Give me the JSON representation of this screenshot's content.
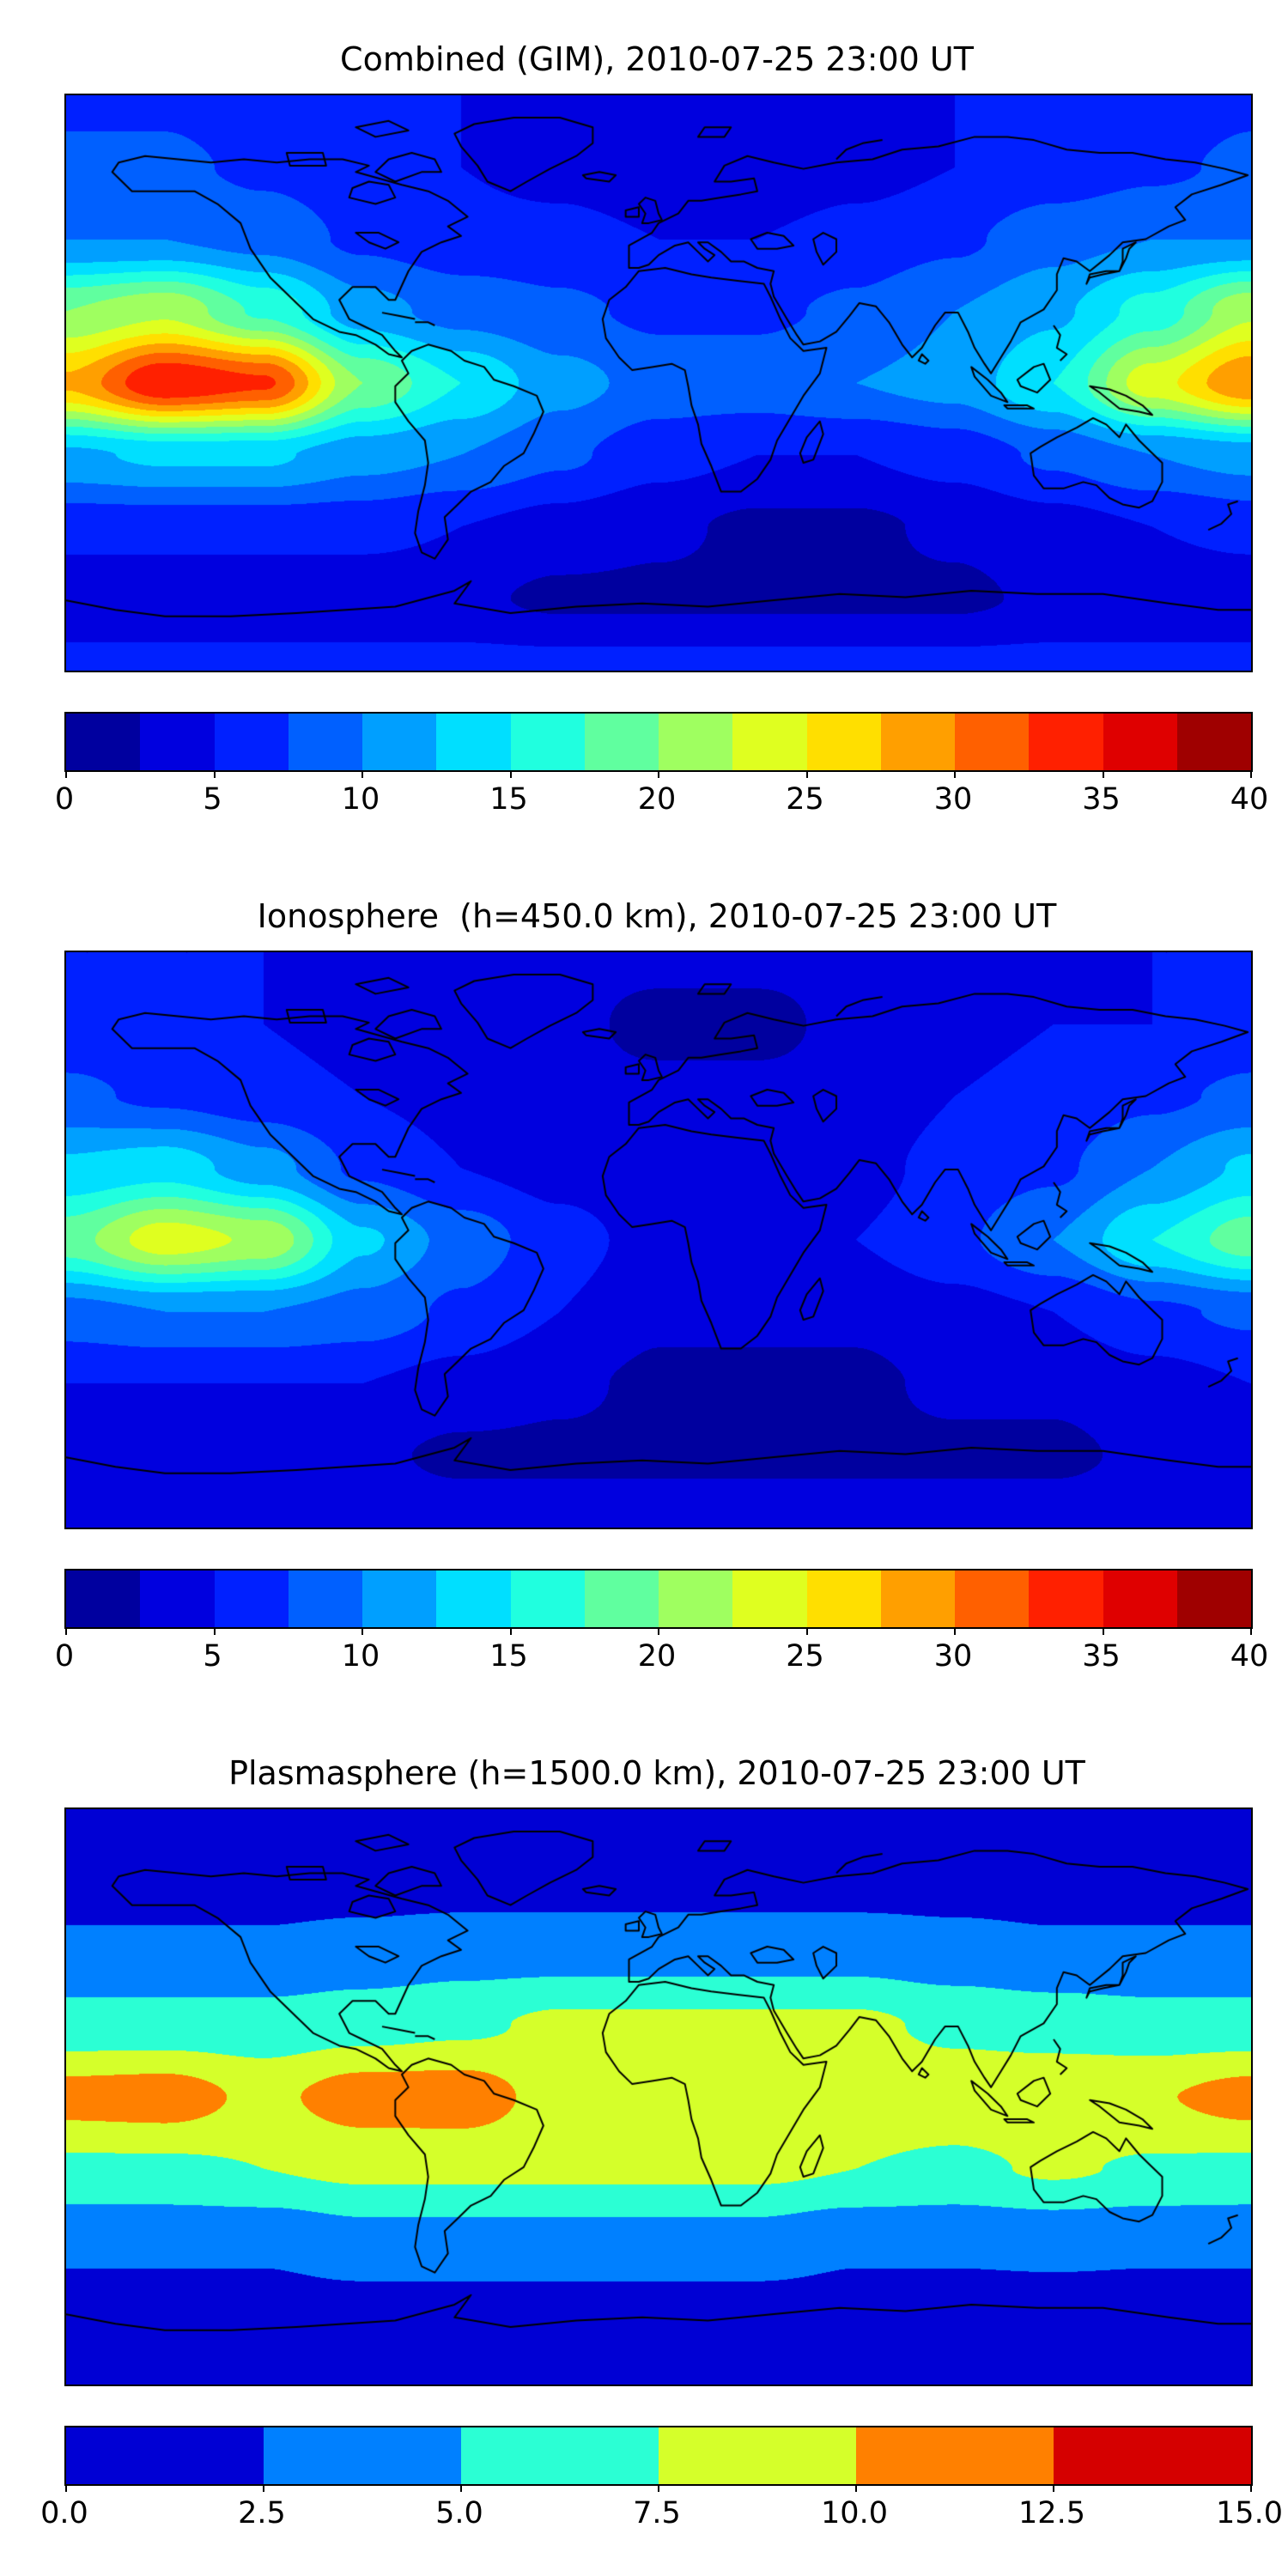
{
  "figure": {
    "background": "#ffffff",
    "panels": [
      {
        "title": "Combined (GIM), 2010-07-25 23:00 UT",
        "colorbar": {
          "tick_labels": [
            "0",
            "5",
            "10",
            "15",
            "20",
            "25",
            "30",
            "35",
            "40"
          ],
          "n_segments": 16
        }
      },
      {
        "title": "Ionosphere  (h=450.0 km), 2010-07-25 23:00 UT",
        "colorbar": {
          "tick_labels": [
            "0",
            "5",
            "10",
            "15",
            "20",
            "25",
            "30",
            "35",
            "40"
          ],
          "n_segments": 16
        }
      },
      {
        "title": "Plasmasphere (h=1500.0 km), 2010-07-25 23:00 UT",
        "colorbar": {
          "tick_labels": [
            "0.0",
            "2.5",
            "5.0",
            "7.5",
            "10.0",
            "12.5",
            "15.0"
          ],
          "n_segments": 6
        }
      }
    ]
  },
  "chart_data": [
    {
      "type": "heatmap",
      "title": "Combined (GIM), 2010-07-25 23:00 UT",
      "colormap": "jet",
      "map_overlay": "world-coastlines",
      "projection": "equirectangular",
      "vmin": 0,
      "vmax": 40,
      "level_step": 2.5,
      "colorbar_ticks": [
        0,
        5,
        10,
        15,
        20,
        25,
        30,
        35,
        40
      ],
      "lon": [
        -180,
        -150,
        -120,
        -90,
        -60,
        -30,
        0,
        30,
        60,
        90,
        120,
        150,
        180
      ],
      "lat": [
        90,
        67.5,
        45,
        22.5,
        0,
        -22.5,
        -45,
        -67.5,
        -90
      ],
      "values": [
        [
          7,
          7,
          6,
          6,
          5,
          4,
          4,
          4,
          4,
          5,
          6,
          6,
          7
        ],
        [
          8,
          8,
          7,
          6,
          5,
          4,
          3,
          3,
          4,
          5,
          6,
          7,
          8
        ],
        [
          10,
          10,
          9,
          7,
          6,
          6,
          5,
          5,
          6,
          7,
          9,
          10,
          10
        ],
        [
          20,
          22,
          17,
          11,
          9,
          8,
          7,
          7,
          8,
          10,
          12,
          16,
          22
        ],
        [
          28,
          35,
          33,
          20,
          15,
          11,
          9,
          9,
          10,
          11,
          15,
          24,
          30
        ],
        [
          12,
          13,
          13,
          11,
          10,
          8,
          6,
          5,
          5,
          6,
          8,
          10,
          11
        ],
        [
          6,
          6,
          6,
          6,
          5,
          4,
          3,
          2,
          2,
          3,
          4,
          5,
          6
        ],
        [
          3,
          3,
          3,
          3,
          3,
          2,
          2,
          2,
          2,
          2,
          3,
          3,
          3
        ],
        [
          6,
          6,
          6,
          6,
          6,
          6,
          6,
          6,
          6,
          6,
          6,
          6,
          6
        ]
      ]
    },
    {
      "type": "heatmap",
      "title": "Ionosphere  (h=450.0 km), 2010-07-25 23:00 UT",
      "colormap": "jet",
      "map_overlay": "world-coastlines",
      "projection": "equirectangular",
      "vmin": 0,
      "vmax": 40,
      "level_step": 2.5,
      "colorbar_ticks": [
        0,
        5,
        10,
        15,
        20,
        25,
        30,
        35,
        40
      ],
      "lon": [
        -180,
        -150,
        -120,
        -90,
        -60,
        -30,
        0,
        30,
        60,
        90,
        120,
        150,
        180
      ],
      "lat": [
        90,
        67.5,
        45,
        22.5,
        0,
        -22.5,
        -45,
        -67.5,
        -90
      ],
      "values": [
        [
          5,
          5,
          5,
          4,
          4,
          3,
          3,
          3,
          3,
          4,
          4,
          5,
          5
        ],
        [
          6,
          6,
          5,
          4,
          3,
          3,
          2,
          2,
          3,
          4,
          5,
          5,
          6
        ],
        [
          8,
          7,
          6,
          5,
          4,
          3,
          3,
          3,
          3,
          5,
          6,
          7,
          8
        ],
        [
          13,
          14,
          11,
          7,
          5,
          4,
          3,
          3,
          4,
          6,
          7,
          10,
          13
        ],
        [
          19,
          24,
          22,
          13,
          9,
          6,
          4,
          4,
          5,
          7,
          10,
          15,
          19
        ],
        [
          9,
          10,
          10,
          9,
          7,
          5,
          3,
          3,
          3,
          4,
          5,
          7,
          8
        ],
        [
          5,
          5,
          5,
          5,
          4,
          3,
          2,
          2,
          2,
          3,
          3,
          4,
          5
        ],
        [
          3,
          3,
          3,
          3,
          2,
          2,
          2,
          2,
          2,
          2,
          2,
          3,
          3
        ],
        [
          4,
          4,
          4,
          4,
          4,
          4,
          4,
          4,
          4,
          4,
          4,
          4,
          4
        ]
      ]
    },
    {
      "type": "heatmap",
      "title": "Plasmasphere (h=1500.0 km), 2010-07-25 23:00 UT",
      "colormap": "jet",
      "map_overlay": "world-coastlines",
      "projection": "equirectangular",
      "vmin": 0,
      "vmax": 15,
      "level_step": 2.5,
      "colorbar_ticks": [
        0.0,
        2.5,
        5.0,
        7.5,
        10.0,
        12.5,
        15.0
      ],
      "lon": [
        -180,
        -150,
        -120,
        -90,
        -60,
        -30,
        0,
        30,
        60,
        90,
        120,
        150,
        180
      ],
      "lat": [
        90,
        67.5,
        45,
        22.5,
        0,
        -22.5,
        -45,
        -67.5,
        -90
      ],
      "values": [
        [
          1.5,
          1.5,
          1.5,
          1.5,
          1.5,
          1.5,
          1.5,
          1.5,
          1.5,
          1.5,
          1.5,
          1.5,
          1.5
        ],
        [
          1.5,
          1.5,
          1.5,
          1.5,
          1.5,
          1.5,
          1.5,
          1.5,
          1.5,
          1.5,
          1.5,
          1.5,
          1.5
        ],
        [
          3,
          3,
          3,
          3.5,
          4,
          4,
          4,
          4,
          4,
          3.5,
          3,
          3,
          3
        ],
        [
          6,
          6,
          6,
          6.5,
          7,
          8,
          8,
          8,
          8,
          7,
          6.5,
          6,
          6
        ],
        [
          11,
          11.3,
          9.4,
          11.3,
          11.4,
          9,
          9,
          9.5,
          9,
          9,
          9.4,
          9.8,
          11
        ],
        [
          7,
          7,
          7.5,
          8,
          8,
          8,
          8,
          8,
          7.5,
          7,
          7.8,
          7.2,
          7
        ],
        [
          3,
          3,
          3,
          4,
          4,
          4,
          4,
          4,
          3,
          3,
          3.2,
          3,
          3
        ],
        [
          1.5,
          1.5,
          1.5,
          1.5,
          1.5,
          1.5,
          1.5,
          1.5,
          1.5,
          1.5,
          1.5,
          1.5,
          1.5
        ],
        [
          1.5,
          1.5,
          1.5,
          1.5,
          1.5,
          1.5,
          1.5,
          1.5,
          1.5,
          1.5,
          1.5,
          1.5,
          1.5
        ]
      ]
    }
  ]
}
